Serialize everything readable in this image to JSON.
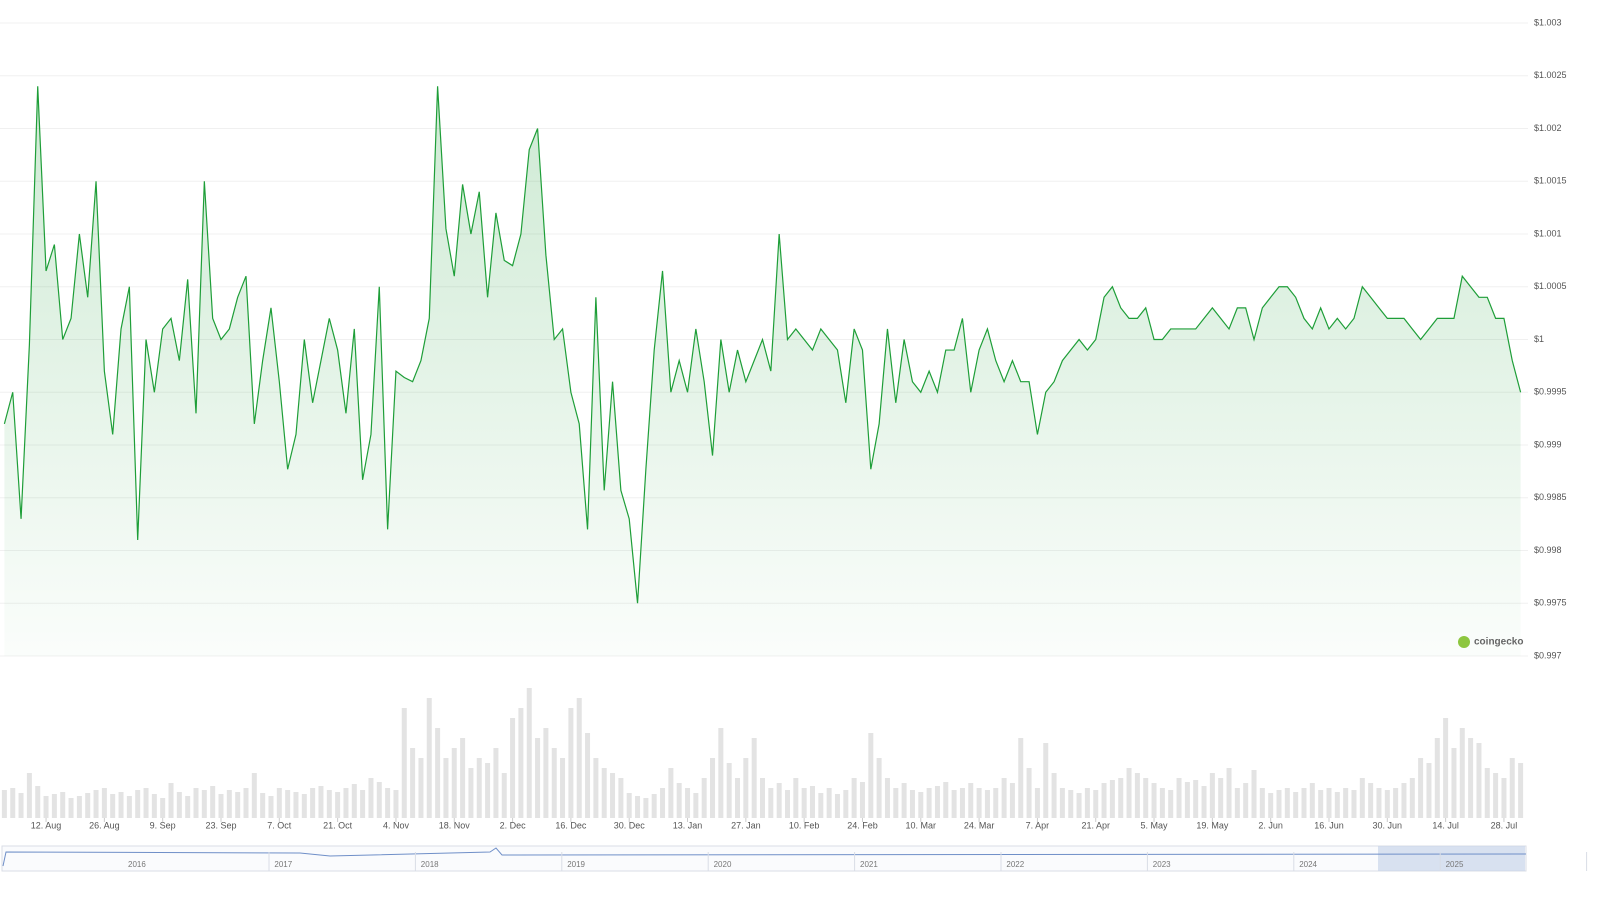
{
  "chart_data": {
    "type": "line",
    "color": "#1e9e38",
    "volume_color": "#e3e3e3",
    "x": [
      "2. Aug",
      "4. Aug",
      "6. Aug",
      "8. Aug",
      "10. Aug",
      "12. Aug",
      "14. Aug",
      "16. Aug",
      "18. Aug",
      "20. Aug",
      "22. Aug",
      "24. Aug",
      "26. Aug",
      "28. Aug",
      "30. Aug",
      "1. Sep",
      "3. Sep",
      "5. Sep",
      "7. Sep",
      "9. Sep",
      "11. Sep",
      "13. Sep",
      "15. Sep",
      "17. Sep",
      "19. Sep",
      "21. Sep",
      "23. Sep",
      "25. Sep",
      "27. Sep",
      "29. Sep",
      "1. Oct",
      "3. Oct",
      "5. Oct",
      "7. Oct",
      "9. Oct",
      "11. Oct",
      "13. Oct",
      "15. Oct",
      "17. Oct",
      "19. Oct",
      "21. Oct",
      "23. Oct",
      "25. Oct",
      "27. Oct",
      "29. Oct",
      "31. Oct",
      "2. Nov",
      "4. Nov",
      "6. Nov",
      "8. Nov",
      "10. Nov",
      "12. Nov",
      "14. Nov",
      "16. Nov",
      "18. Nov",
      "20. Nov",
      "22. Nov",
      "24. Nov",
      "26. Nov",
      "28. Nov",
      "30. Nov",
      "2. Dec",
      "4. Dec",
      "6. Dec",
      "8. Dec",
      "10. Dec",
      "12. Dec",
      "14. Dec",
      "16. Dec",
      "18. Dec",
      "20. Dec",
      "22. Dec",
      "24. Dec",
      "26. Dec",
      "28. Dec",
      "30. Dec",
      "1. Jan",
      "3. Jan",
      "5. Jan",
      "7. Jan",
      "9. Jan",
      "11. Jan",
      "13. Jan",
      "15. Jan",
      "17. Jan",
      "19. Jan",
      "21. Jan",
      "23. Jan",
      "25. Jan",
      "27. Jan",
      "29. Jan",
      "31. Jan",
      "2. Feb",
      "4. Feb",
      "6. Feb",
      "8. Feb",
      "10. Feb",
      "12. Feb",
      "14. Feb",
      "16. Feb",
      "18. Feb",
      "20. Feb",
      "22. Feb",
      "24. Feb",
      "26. Feb",
      "28. Feb",
      "2. Mar",
      "4. Mar",
      "6. Mar",
      "8. Mar",
      "10. Mar",
      "12. Mar",
      "14. Mar",
      "16. Mar",
      "18. Mar",
      "20. Mar",
      "22. Mar",
      "24. Mar",
      "26. Mar",
      "28. Mar",
      "30. Mar",
      "1. Apr",
      "3. Apr",
      "5. Apr",
      "7. Apr",
      "9. Apr",
      "11. Apr",
      "13. Apr",
      "15. Apr",
      "17. Apr",
      "19. Apr",
      "21. Apr",
      "23. Apr",
      "25. Apr",
      "27. Apr",
      "29. Apr",
      "1. May",
      "3. May",
      "5. May",
      "7. May",
      "9. May",
      "11. May",
      "13. May",
      "15. May",
      "17. May",
      "19. May",
      "21. May",
      "23. May",
      "25. May",
      "27. May",
      "29. May",
      "31. May",
      "2. Jun",
      "4. Jun",
      "6. Jun",
      "8. Jun",
      "10. Jun",
      "12. Jun",
      "14. Jun",
      "16. Jun",
      "18. Jun",
      "20. Jun",
      "22. Jun",
      "24. Jun",
      "26. Jun",
      "28. Jun",
      "30. Jun",
      "2. Jul",
      "4. Jul",
      "6. Jul",
      "8. Jul",
      "10. Jul",
      "12. Jul",
      "14. Jul",
      "16. Jul",
      "18. Jul",
      "20. Jul",
      "22. Jul",
      "24. Jul",
      "26. Jul",
      "28. Jul",
      "30. Jul",
      "1. Aug"
    ],
    "values": [
      0.9992,
      0.9995,
      0.9983,
      0.99995,
      1.0024,
      1.00065,
      1.0009,
      1.0,
      1.0002,
      1.001,
      1.0004,
      1.0015,
      0.9997,
      0.9991,
      1.0001,
      1.0005,
      0.9981,
      1.0,
      0.9995,
      1.0001,
      1.0002,
      0.9998,
      1.00057,
      0.9993,
      1.0015,
      1.0002,
      1.0,
      1.0001,
      1.0004,
      1.0006,
      0.9992,
      0.9998,
      1.0003,
      0.9996,
      0.99877,
      0.9991,
      1.0,
      0.9994,
      0.9998,
      1.0002,
      0.9999,
      0.9993,
      1.0001,
      0.99867,
      0.9991,
      1.0005,
      0.9982,
      0.9997,
      0.99964,
      0.9996,
      0.9998,
      1.0002,
      1.0024,
      1.00105,
      1.0006,
      1.00147,
      1.001,
      1.0014,
      1.0004,
      1.0012,
      1.00075,
      1.0007,
      1.001,
      1.0018,
      1.002,
      1.0008,
      1.0,
      1.0001,
      0.9995,
      0.9992,
      0.9982,
      1.0004,
      0.99857,
      0.9996,
      0.99857,
      0.9983,
      0.9975,
      0.99877,
      0.9999,
      1.00065,
      0.9995,
      0.9998,
      0.9995,
      1.0001,
      0.9996,
      0.9989,
      1.0,
      0.9995,
      0.9999,
      0.9996,
      0.9998,
      1.0,
      0.9997,
      1.001,
      1.0,
      1.0001,
      1.0,
      0.9999,
      1.0001,
      1.0,
      0.9999,
      0.9994,
      1.0001,
      0.9999,
      0.99877,
      0.9992,
      1.0001,
      0.9994,
      1.0,
      0.9996,
      0.9995,
      0.9997,
      0.9995,
      0.9999,
      0.9999,
      1.0002,
      0.9995,
      0.9999,
      1.0001,
      0.9998,
      0.9996,
      0.9998,
      0.9996,
      0.9996,
      0.9991,
      0.9995,
      0.9996,
      0.9998,
      0.9999,
      1.0,
      0.9999,
      1.0,
      1.0004,
      1.0005,
      1.0003,
      1.0002,
      1.0002,
      1.0003,
      1.0,
      1.0,
      1.0001,
      1.0001,
      1.0001,
      1.0001,
      1.0002,
      1.0003,
      1.0002,
      1.0001,
      1.0003,
      1.0003,
      1.0,
      1.0003,
      1.0004,
      1.0005,
      1.0005,
      1.0004,
      1.0002,
      1.0001,
      1.0003,
      1.0001,
      1.0002,
      1.0001,
      1.0002,
      1.0005,
      1.0004,
      1.0003,
      1.0002,
      1.0002,
      1.0002,
      1.0001,
      1.0,
      1.0001,
      1.0002,
      1.0002,
      1.0002,
      1.0006,
      1.0005,
      1.0004,
      1.0004,
      1.0002,
      1.0002,
      0.9998,
      0.9995
    ],
    "volume": [
      28,
      30,
      25,
      45,
      32,
      22,
      24,
      26,
      20,
      22,
      25,
      28,
      30,
      24,
      26,
      22,
      28,
      30,
      24,
      20,
      35,
      26,
      22,
      30,
      28,
      32,
      24,
      28,
      26,
      30,
      45,
      25,
      22,
      30,
      28,
      26,
      24,
      30,
      32,
      28,
      26,
      30,
      34,
      28,
      40,
      36,
      30,
      28,
      110,
      70,
      60,
      120,
      90,
      60,
      70,
      80,
      50,
      60,
      55,
      70,
      45,
      100,
      110,
      130,
      80,
      90,
      70,
      60,
      110,
      120,
      85,
      60,
      50,
      45,
      40,
      25,
      22,
      20,
      24,
      30,
      50,
      35,
      30,
      25,
      40,
      60,
      90,
      55,
      40,
      60,
      80,
      40,
      30,
      35,
      28,
      40,
      30,
      32,
      25,
      30,
      24,
      28,
      40,
      36,
      85,
      60,
      40,
      30,
      35,
      28,
      26,
      30,
      32,
      36,
      28,
      30,
      35,
      30,
      28,
      30,
      40,
      35,
      80,
      50,
      30,
      75,
      45,
      30,
      28,
      25,
      30,
      28,
      35,
      38,
      40,
      50,
      45,
      40,
      35,
      30,
      28,
      40,
      36,
      38,
      32,
      45,
      40,
      50,
      30,
      35,
      48,
      30,
      25,
      28,
      30,
      26,
      30,
      35,
      28,
      30,
      26,
      30,
      28,
      40,
      35,
      30,
      28,
      30,
      35,
      40,
      60,
      55,
      80,
      100,
      70,
      90,
      80,
      75,
      50,
      45,
      40,
      60,
      55
    ],
    "xticks": [
      "12. Aug",
      "26. Aug",
      "9. Sep",
      "23. Sep",
      "7. Oct",
      "21. Oct",
      "4. Nov",
      "18. Nov",
      "2. Dec",
      "16. Dec",
      "30. Dec",
      "13. Jan",
      "27. Jan",
      "10. Feb",
      "24. Feb",
      "10. Mar",
      "24. Mar",
      "7. Apr",
      "21. Apr",
      "5. May",
      "19. May",
      "2. Jun",
      "16. Jun",
      "30. Jun",
      "14. Jul",
      "28. Jul"
    ],
    "ylim": [
      0.997,
      1.003
    ],
    "yticks": [
      {
        "value": 0.997,
        "label": "$0.997"
      },
      {
        "value": 0.9975,
        "label": "$0.9975"
      },
      {
        "value": 0.998,
        "label": "$0.998"
      },
      {
        "value": 0.9985,
        "label": "$0.9985"
      },
      {
        "value": 0.999,
        "label": "$0.999"
      },
      {
        "value": 0.9995,
        "label": "$0.9995"
      },
      {
        "value": 1,
        "label": "$1"
      },
      {
        "value": 1.0005,
        "label": "$1.0005"
      },
      {
        "value": 1.001,
        "label": "$1.001"
      },
      {
        "value": 1.0015,
        "label": "$1.0015"
      },
      {
        "value": 1.002,
        "label": "$1.002"
      },
      {
        "value": 1.0025,
        "label": "$1.0025"
      },
      {
        "value": 1.003,
        "label": "$1.003"
      }
    ],
    "grid": true,
    "watermark": "coingecko",
    "navigator_years": [
      "2016",
      "2017",
      "2018",
      "2019",
      "2020",
      "2021",
      "2022",
      "2023",
      "2024",
      "2025"
    ]
  }
}
